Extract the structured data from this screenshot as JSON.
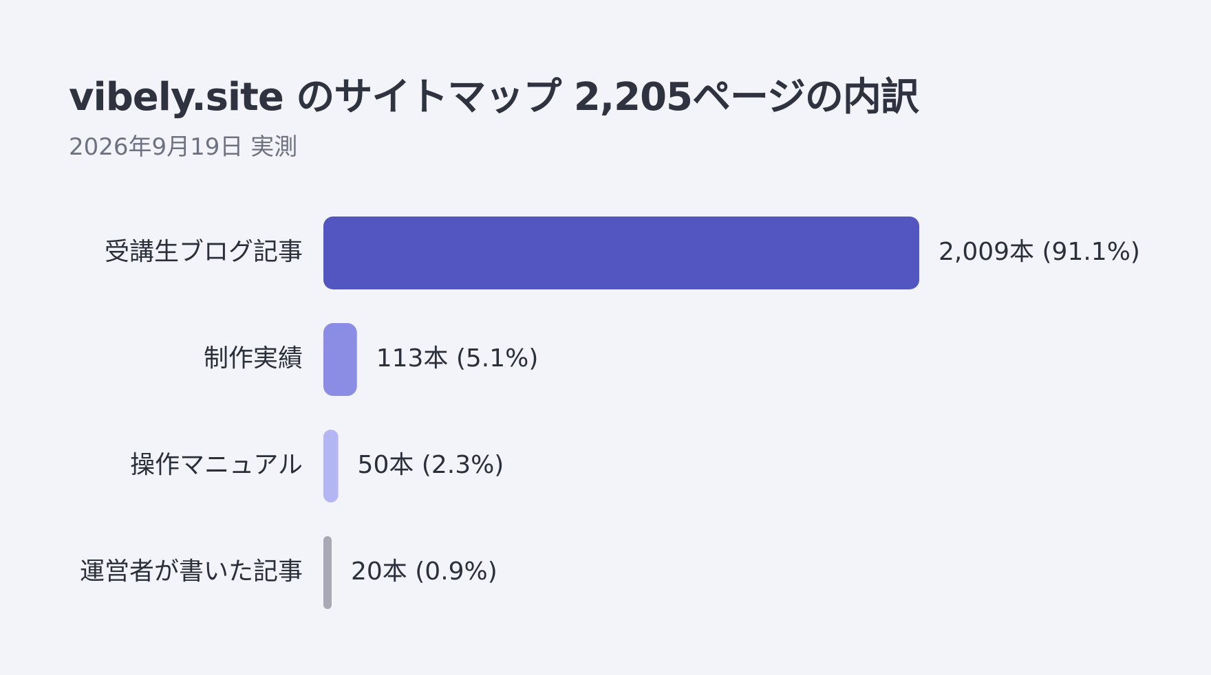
{
  "header": {
    "title": "vibely.site のサイトマップ 2,205ページの内訳",
    "subtitle": "2026年9月19日 実測"
  },
  "chart_data": {
    "type": "bar",
    "orientation": "horizontal",
    "title": "vibely.site のサイトマップ 2,205ページの内訳",
    "subtitle": "2026年9月19日 実測",
    "xlabel": "",
    "ylabel": "",
    "grid": false,
    "legend": "none",
    "unit": "本",
    "total": 2205,
    "categories": [
      "受講生ブログ記事",
      "制作実績",
      "操作マニュアル",
      "運営者が書いた記事"
    ],
    "values": [
      2009,
      113,
      50,
      20
    ],
    "percents": [
      "91.1%",
      "5.1%",
      "2.3%",
      "0.9%"
    ],
    "data_labels": [
      "2,009本 (91.1%)",
      "113本 (5.1%)",
      "50本 (2.3%)",
      "20本 (0.9%)"
    ],
    "colors": [
      "#5355c0",
      "#8a8de3",
      "#b3b6f2",
      "#a9a9b6"
    ]
  }
}
